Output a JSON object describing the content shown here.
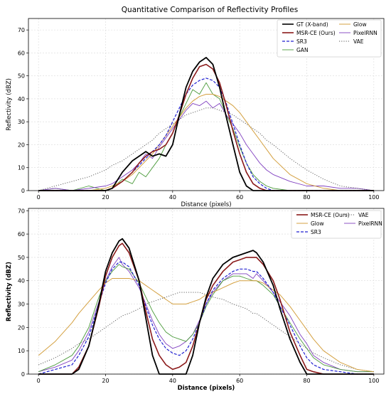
{
  "chart_data": [
    {
      "type": "line",
      "title": "Quantitative Comparison of Reflectivity Profiles",
      "xlabel": "Distance (pixels)",
      "ylabel": "Reflectivity (dBZ)",
      "xlim": [
        -3,
        103
      ],
      "ylim": [
        0,
        75
      ],
      "xticks": [
        "0",
        "20",
        "40",
        "60",
        "80",
        "100"
      ],
      "yticks": [
        "0",
        "10",
        "20",
        "30",
        "40",
        "50",
        "60",
        "70"
      ],
      "grid": true,
      "legend_position": "top-right",
      "legend_columns": 2,
      "x": [
        0,
        5,
        10,
        15,
        20,
        22,
        25,
        28,
        30,
        32,
        34,
        36,
        38,
        40,
        42,
        44,
        46,
        48,
        50,
        52,
        54,
        56,
        58,
        60,
        62,
        64,
        66,
        68,
        70,
        75,
        80,
        85,
        90,
        95,
        100
      ],
      "series": [
        {
          "name": "GT (X-band)",
          "color": "#000000",
          "style": "solid",
          "width": 1.8,
          "values": [
            0,
            0,
            0,
            0,
            0,
            1,
            8,
            13,
            15,
            17,
            15,
            16,
            15,
            20,
            33,
            45,
            52,
            56,
            58,
            55,
            45,
            32,
            20,
            8,
            2,
            0,
            0,
            0,
            0,
            0,
            0,
            0,
            0,
            0,
            0
          ]
        },
        {
          "name": "MSR-CE (Ours)",
          "color": "#8b1a1a",
          "style": "solid",
          "width": 1.6,
          "values": [
            0,
            0,
            0,
            0,
            0,
            1,
            4,
            8,
            12,
            15,
            17,
            18,
            20,
            25,
            33,
            42,
            49,
            54,
            55,
            53,
            47,
            37,
            26,
            16,
            8,
            3,
            1,
            0,
            0,
            0,
            0,
            0,
            0,
            0,
            0
          ]
        },
        {
          "name": "SR3",
          "color": "#2020d0",
          "style": "dashed",
          "width": 1.2,
          "values": [
            0,
            0,
            0,
            0,
            0,
            1,
            4,
            8,
            11,
            14,
            17,
            20,
            24,
            30,
            36,
            42,
            46,
            48,
            49,
            48,
            45,
            38,
            29,
            20,
            12,
            6,
            3,
            1,
            0,
            0,
            0,
            0,
            0,
            0,
            0
          ]
        },
        {
          "name": "GAN",
          "color": "#4a9a3a",
          "style": "solid",
          "width": 0.9,
          "values": [
            0,
            1,
            0,
            2,
            0,
            1,
            5,
            3,
            8,
            6,
            10,
            14,
            20,
            25,
            32,
            38,
            44,
            42,
            47,
            42,
            40,
            33,
            27,
            19,
            12,
            7,
            4,
            2,
            1,
            0,
            0,
            0,
            0,
            0,
            0
          ]
        },
        {
          "name": "Glow",
          "color": "#d4a040",
          "style": "solid",
          "width": 1.0,
          "values": [
            0,
            0,
            0,
            0,
            1,
            2,
            4,
            7,
            10,
            13,
            16,
            20,
            24,
            28,
            32,
            36,
            39,
            41,
            42,
            42,
            41,
            39,
            37,
            34,
            30,
            26,
            22,
            18,
            14,
            7,
            3,
            1,
            0,
            0,
            0
          ]
        },
        {
          "name": "PixelRNN",
          "color": "#8040c0",
          "style": "solid",
          "width": 0.9,
          "values": [
            0,
            1,
            0,
            1,
            2,
            3,
            6,
            9,
            12,
            16,
            14,
            19,
            23,
            27,
            31,
            35,
            38,
            37,
            39,
            36,
            38,
            33,
            29,
            25,
            20,
            16,
            12,
            9,
            7,
            4,
            2,
            2,
            1,
            1,
            0
          ]
        },
        {
          "name": "VAE",
          "color": "#555555",
          "style": "dotted",
          "width": 0.9,
          "values": [
            0,
            2,
            4,
            6,
            9,
            11,
            13,
            16,
            18,
            20,
            22,
            25,
            27,
            29,
            31,
            33,
            34,
            35,
            36,
            36,
            35,
            34,
            33,
            31,
            29,
            27,
            25,
            22,
            20,
            14,
            9,
            5,
            2,
            1,
            0
          ]
        }
      ]
    },
    {
      "type": "line",
      "title": "",
      "xlabel": "Distance (pixels)",
      "ylabel": "Reflectivity (dBZ)",
      "xlim": [
        -3,
        103
      ],
      "ylim": [
        0,
        71
      ],
      "xticks": [
        "0",
        "20",
        "40",
        "60",
        "80",
        "100"
      ],
      "yticks": [
        "0",
        "10",
        "20",
        "30",
        "40",
        "50",
        "60",
        "70"
      ],
      "grid": true,
      "legend_position": "top-right",
      "legend_columns": 2,
      "x": [
        0,
        5,
        10,
        12,
        15,
        18,
        20,
        22,
        24,
        25,
        27,
        30,
        32,
        34,
        36,
        38,
        40,
        42,
        44,
        46,
        48,
        50,
        52,
        55,
        58,
        60,
        62,
        64,
        65,
        67,
        70,
        72,
        75,
        78,
        80,
        82,
        85,
        90,
        95,
        100
      ],
      "series": [
        {
          "name": "GT",
          "color": "#000000",
          "style": "solid",
          "width": 1.8,
          "values": [
            0,
            0,
            0,
            2,
            12,
            30,
            44,
            52,
            57,
            58,
            54,
            40,
            24,
            8,
            0,
            0,
            0,
            0,
            0,
            8,
            22,
            33,
            41,
            47,
            50,
            51,
            52,
            53,
            52,
            48,
            38,
            28,
            15,
            5,
            0,
            0,
            0,
            0,
            0,
            0
          ]
        },
        {
          "name": "MSR-CE (Ours)",
          "color": "#8b1a1a",
          "style": "solid",
          "width": 1.6,
          "values": [
            0,
            0,
            0,
            3,
            12,
            29,
            42,
            50,
            55,
            56,
            52,
            40,
            27,
            15,
            8,
            4,
            2,
            3,
            5,
            12,
            22,
            32,
            38,
            44,
            48,
            49,
            50,
            50,
            50,
            47,
            40,
            32,
            18,
            8,
            2,
            1,
            0,
            0,
            0,
            0
          ]
        },
        {
          "name": "SR3",
          "color": "#2020d0",
          "style": "dashed",
          "width": 1.2,
          "values": [
            0,
            2,
            4,
            8,
            16,
            30,
            39,
            45,
            48,
            48,
            46,
            38,
            29,
            21,
            15,
            11,
            9,
            8,
            10,
            15,
            22,
            30,
            36,
            41,
            44,
            45,
            45,
            44,
            44,
            41,
            35,
            29,
            21,
            12,
            7,
            4,
            2,
            1,
            0,
            0
          ]
        },
        {
          "name": "PixelRNN",
          "color": "#8040c0",
          "style": "solid",
          "width": 0.9,
          "values": [
            1,
            3,
            6,
            10,
            18,
            31,
            40,
            46,
            50,
            47,
            44,
            37,
            30,
            23,
            17,
            13,
            11,
            12,
            14,
            17,
            23,
            30,
            35,
            40,
            43,
            43,
            43,
            41,
            43,
            40,
            35,
            31,
            25,
            17,
            13,
            8,
            5,
            2,
            1,
            1
          ]
        },
        {
          "name": "Glow",
          "color": "#d4a040",
          "style": "solid",
          "width": 1.0,
          "values": [
            8,
            14,
            22,
            26,
            31,
            36,
            39,
            41,
            41,
            41,
            41,
            40,
            38,
            36,
            34,
            32,
            30,
            30,
            30,
            31,
            32,
            34,
            35,
            37,
            39,
            40,
            40,
            40,
            40,
            39,
            36,
            34,
            29,
            23,
            19,
            15,
            10,
            5,
            2,
            1
          ]
        },
        {
          "name": "GAN",
          "color": "#4a9a3a",
          "style": "solid",
          "width": 0.9,
          "values": [
            1,
            4,
            8,
            12,
            20,
            33,
            40,
            44,
            47,
            46,
            45,
            39,
            33,
            27,
            22,
            18,
            16,
            15,
            14,
            17,
            22,
            29,
            34,
            40,
            42,
            42,
            41,
            40,
            40,
            38,
            34,
            29,
            22,
            15,
            11,
            7,
            4,
            2,
            1,
            1
          ]
        },
        {
          "name": "VAE",
          "color": "#555555",
          "style": "dotted",
          "width": 0.9,
          "values": [
            4,
            7,
            11,
            13,
            15,
            18,
            20,
            22,
            24,
            25,
            26,
            28,
            30,
            31,
            32,
            33,
            34,
            35,
            35,
            35,
            35,
            34,
            33,
            32,
            30,
            29,
            28,
            26,
            26,
            24,
            21,
            19,
            16,
            13,
            11,
            9,
            7,
            4,
            2,
            1
          ]
        }
      ],
      "legend_entries": [
        "MSR-CE (Ours)",
        "Glow",
        "SR3",
        "VAE",
        "PixelRNN"
      ]
    }
  ]
}
